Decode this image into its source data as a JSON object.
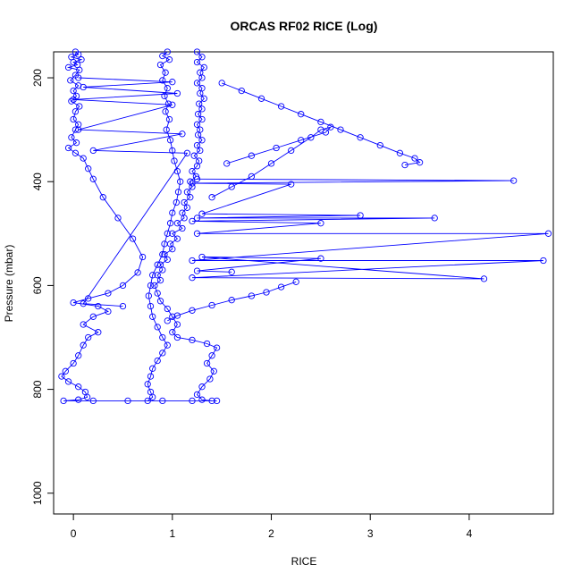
{
  "chart_data": {
    "type": "scatter",
    "title": "ORCAS RF02 RICE (Log)",
    "xlabel": "RICE",
    "ylabel": "Pressure (mbar)",
    "xlim": [
      -0.2,
      4.85
    ],
    "ylim": [
      1040,
      150
    ],
    "y_axis_reversed": true,
    "x_ticks": [
      "0",
      "1",
      "2",
      "3",
      "4"
    ],
    "y_ticks": [
      "200",
      "400",
      "600",
      "800",
      "1000"
    ],
    "grid": false,
    "legend": "none",
    "marker": "open-circle",
    "connect_points": true,
    "color": "#0000ff",
    "series": [
      {
        "profile": "left-ascent",
        "points": [
          [
            0.02,
            150
          ],
          [
            0.05,
            155
          ],
          [
            -0.02,
            160
          ],
          [
            0.08,
            165
          ],
          [
            0.0,
            170
          ],
          [
            0.04,
            175
          ],
          [
            -0.05,
            180
          ],
          [
            0.06,
            185
          ],
          [
            0.02,
            195
          ],
          [
            -0.03,
            205
          ],
          [
            0.05,
            215
          ],
          [
            0.0,
            225
          ],
          [
            0.03,
            235
          ],
          [
            -0.02,
            245
          ],
          [
            0.06,
            255
          ],
          [
            0.02,
            265
          ],
          [
            0.0,
            280
          ],
          [
            0.05,
            290
          ],
          [
            0.02,
            300
          ],
          [
            -0.02,
            315
          ],
          [
            0.03,
            325
          ],
          [
            -0.05,
            335
          ],
          [
            0.02,
            345
          ],
          [
            0.1,
            355
          ],
          [
            0.15,
            375
          ],
          [
            0.2,
            395
          ],
          [
            0.3,
            430
          ],
          [
            0.45,
            470
          ],
          [
            0.6,
            510
          ],
          [
            0.7,
            545
          ],
          [
            0.65,
            575
          ],
          [
            0.5,
            600
          ],
          [
            0.35,
            615
          ],
          [
            0.15,
            625
          ],
          [
            0.0,
            633
          ],
          [
            0.25,
            640
          ],
          [
            0.35,
            650
          ],
          [
            0.2,
            660
          ],
          [
            0.1,
            675
          ],
          [
            0.25,
            690
          ],
          [
            0.15,
            700
          ],
          [
            0.1,
            715
          ],
          [
            0.05,
            735
          ],
          [
            0.0,
            750
          ],
          [
            -0.08,
            765
          ],
          [
            -0.12,
            775
          ],
          [
            -0.05,
            785
          ],
          [
            0.05,
            795
          ],
          [
            0.12,
            805
          ],
          [
            0.14,
            815
          ],
          [
            0.05,
            820
          ],
          [
            -0.1,
            822
          ],
          [
            0.2,
            822
          ],
          [
            0.55,
            822
          ],
          [
            0.9,
            822
          ],
          [
            1.2,
            822
          ],
          [
            1.45,
            822
          ]
        ]
      },
      {
        "profile": "center-column",
        "points": [
          [
            1.25,
            150
          ],
          [
            1.3,
            160
          ],
          [
            1.25,
            170
          ],
          [
            1.32,
            180
          ],
          [
            1.28,
            190
          ],
          [
            1.3,
            200
          ],
          [
            1.25,
            210
          ],
          [
            1.3,
            220
          ],
          [
            1.28,
            230
          ],
          [
            1.32,
            240
          ],
          [
            1.27,
            250
          ],
          [
            1.3,
            260
          ],
          [
            1.26,
            270
          ],
          [
            1.3,
            280
          ],
          [
            1.25,
            290
          ],
          [
            1.28,
            300
          ],
          [
            1.26,
            310
          ],
          [
            1.3,
            320
          ],
          [
            1.25,
            330
          ],
          [
            1.28,
            340
          ],
          [
            1.22,
            350
          ],
          [
            1.27,
            360
          ],
          [
            1.25,
            370
          ],
          [
            1.2,
            380
          ],
          [
            1.24,
            390
          ],
          [
            1.18,
            400
          ],
          [
            1.2,
            410
          ],
          [
            1.15,
            420
          ],
          [
            1.18,
            430
          ],
          [
            1.12,
            440
          ],
          [
            1.15,
            450
          ],
          [
            1.1,
            460
          ],
          [
            1.12,
            470
          ],
          [
            1.05,
            480
          ],
          [
            1.1,
            490
          ],
          [
            1.0,
            500
          ],
          [
            1.05,
            510
          ],
          [
            0.98,
            520
          ],
          [
            1.0,
            530
          ],
          [
            0.92,
            540
          ],
          [
            0.95,
            550
          ],
          [
            0.88,
            560
          ],
          [
            0.9,
            570
          ],
          [
            0.85,
            580
          ],
          [
            0.88,
            590
          ],
          [
            0.82,
            600
          ],
          [
            0.85,
            615
          ],
          [
            0.88,
            630
          ],
          [
            0.95,
            645
          ],
          [
            1.0,
            660
          ],
          [
            1.05,
            675
          ],
          [
            1.0,
            690
          ],
          [
            1.05,
            700
          ],
          [
            1.2,
            705
          ],
          [
            1.35,
            712
          ],
          [
            1.45,
            720
          ],
          [
            1.4,
            735
          ],
          [
            1.35,
            750
          ],
          [
            1.42,
            765
          ],
          [
            1.38,
            780
          ],
          [
            1.3,
            795
          ],
          [
            1.25,
            810
          ],
          [
            1.3,
            820
          ],
          [
            1.4,
            822
          ]
        ]
      },
      {
        "profile": "left-descent",
        "points": [
          [
            0.95,
            150
          ],
          [
            0.9,
            158
          ],
          [
            0.97,
            165
          ],
          [
            0.88,
            175
          ],
          [
            0.93,
            190
          ],
          [
            0.9,
            205
          ],
          [
            0.95,
            220
          ],
          [
            0.92,
            235
          ],
          [
            0.96,
            250
          ],
          [
            0.93,
            265
          ],
          [
            0.97,
            280
          ],
          [
            0.94,
            300
          ],
          [
            0.98,
            320
          ],
          [
            1.0,
            340
          ],
          [
            1.02,
            360
          ],
          [
            1.05,
            380
          ],
          [
            1.08,
            400
          ],
          [
            1.06,
            420
          ],
          [
            1.04,
            440
          ],
          [
            1.0,
            460
          ],
          [
            0.98,
            480
          ],
          [
            0.95,
            500
          ],
          [
            0.92,
            520
          ],
          [
            0.9,
            540
          ],
          [
            0.85,
            560
          ],
          [
            0.8,
            580
          ],
          [
            0.78,
            600
          ],
          [
            0.76,
            620
          ],
          [
            0.78,
            640
          ],
          [
            0.8,
            660
          ],
          [
            0.85,
            680
          ],
          [
            0.9,
            700
          ],
          [
            0.95,
            715
          ],
          [
            0.9,
            730
          ],
          [
            0.85,
            745
          ],
          [
            0.8,
            760
          ],
          [
            0.78,
            775
          ],
          [
            0.75,
            790
          ],
          [
            0.78,
            805
          ],
          [
            0.8,
            815
          ],
          [
            0.75,
            822
          ]
        ]
      },
      {
        "profile": "upper-arc",
        "points": [
          [
            1.5,
            210
          ],
          [
            1.7,
            225
          ],
          [
            1.9,
            240
          ],
          [
            2.1,
            255
          ],
          [
            2.3,
            270
          ],
          [
            2.5,
            285
          ],
          [
            2.7,
            300
          ],
          [
            2.9,
            315
          ],
          [
            3.1,
            330
          ],
          [
            3.3,
            345
          ],
          [
            3.45,
            355
          ],
          [
            3.5,
            363
          ],
          [
            3.35,
            368
          ]
        ]
      },
      {
        "profile": "middle-arc",
        "points": [
          [
            1.4,
            430
          ],
          [
            1.6,
            410
          ],
          [
            1.8,
            390
          ],
          [
            2.0,
            365
          ],
          [
            2.2,
            340
          ],
          [
            2.4,
            315
          ],
          [
            2.5,
            300
          ],
          [
            2.6,
            295
          ],
          [
            2.55,
            305
          ],
          [
            2.3,
            320
          ],
          [
            2.05,
            335
          ],
          [
            1.8,
            350
          ],
          [
            1.55,
            365
          ]
        ]
      },
      {
        "profile": "lower-arc",
        "points": [
          [
            2.25,
            593
          ],
          [
            2.1,
            603
          ],
          [
            1.95,
            613
          ],
          [
            1.8,
            620
          ],
          [
            1.6,
            628
          ],
          [
            1.4,
            638
          ],
          [
            1.2,
            648
          ],
          [
            1.05,
            658
          ],
          [
            0.95,
            668
          ]
        ]
      },
      {
        "profile": "left-spikes",
        "points": [
          [
            0.05,
            200
          ],
          [
            1.0,
            208
          ],
          [
            0.1,
            218
          ],
          [
            1.05,
            230
          ],
          [
            0.0,
            242
          ],
          [
            1.0,
            252
          ],
          [
            0.05,
            300
          ],
          [
            1.1,
            308
          ],
          [
            0.2,
            340
          ],
          [
            1.15,
            345
          ],
          [
            0.1,
            635
          ],
          [
            0.5,
            640
          ]
        ]
      },
      {
        "profile": "right-spikes",
        "points": [
          [
            1.25,
            395
          ],
          [
            4.45,
            398
          ],
          [
            1.2,
            403
          ],
          [
            2.2,
            405
          ],
          [
            1.3,
            462
          ],
          [
            2.9,
            465
          ],
          [
            1.25,
            470
          ],
          [
            3.65,
            470
          ],
          [
            1.2,
            476
          ],
          [
            2.5,
            480
          ],
          [
            1.25,
            500
          ],
          [
            4.8,
            500
          ],
          [
            1.2,
            552
          ],
          [
            4.75,
            552
          ],
          [
            1.2,
            585
          ],
          [
            4.15,
            587
          ],
          [
            1.3,
            545
          ],
          [
            2.5,
            548
          ],
          [
            1.25,
            572
          ],
          [
            1.6,
            574
          ]
        ]
      }
    ]
  }
}
